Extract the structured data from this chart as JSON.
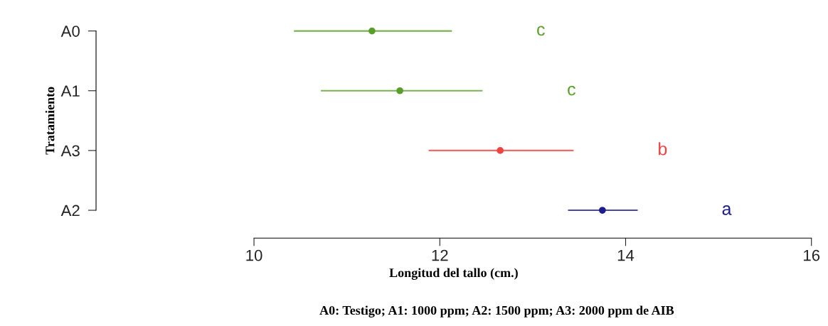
{
  "chart_data": {
    "type": "scatter",
    "orientation": "horizontal",
    "xlabel": "Longitud del tallo (cm.)",
    "ylabel": "Tratamiento",
    "categories": [
      "A0",
      "A1",
      "A3",
      "A2"
    ],
    "values": [
      11.27,
      11.57,
      12.65,
      13.75
    ],
    "errors": [
      [
        10.43,
        12.13
      ],
      [
        10.72,
        12.46
      ],
      [
        11.88,
        13.44
      ],
      [
        13.38,
        14.13
      ]
    ],
    "colors": [
      "#5a9e2a",
      "#5a9e2a",
      "#ee4444",
      "#1c1c8c"
    ],
    "xlim": [
      8.3,
      16
    ],
    "xticks": [
      10,
      12,
      14,
      16
    ],
    "marker": "circle",
    "grid": false,
    "legend": false,
    "annotations": [
      "c",
      "c",
      "b",
      "a",
      "A0: Testigo; A1: 1000 ppm; A2: 1500 ppm; A3: 2000 ppm de AIB"
    ]
  }
}
